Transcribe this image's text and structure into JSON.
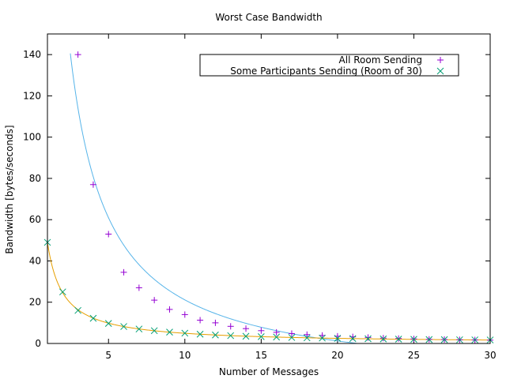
{
  "chart_data": {
    "type": "scatter",
    "title": "Worst Case Bandwidth",
    "xlabel": "Number of Messages",
    "ylabel": "Bandwidth [bytes/seconds]",
    "xlim": [
      1,
      30
    ],
    "ylim": [
      0,
      150
    ],
    "x_ticks": [
      5,
      10,
      15,
      20,
      25,
      30
    ],
    "y_ticks": [
      0,
      20,
      40,
      60,
      80,
      100,
      120,
      140
    ],
    "grid": false,
    "legend_position": "top-right",
    "series": [
      {
        "name": "All Room Sending",
        "marker": "plus",
        "color": "#9400d3",
        "fit_color": "#56b4e9",
        "x": [
          3,
          4,
          5,
          6,
          7,
          8,
          9,
          10,
          11,
          12,
          13,
          14,
          15,
          16,
          17,
          18,
          19,
          20,
          21,
          22,
          23,
          24,
          25,
          26,
          27,
          28,
          29,
          30
        ],
        "y": [
          140,
          77,
          53,
          34.5,
          27,
          21,
          16.5,
          14,
          11.3,
          10,
          8.3,
          7.2,
          6.2,
          5.4,
          4.8,
          4.3,
          3.9,
          3.5,
          3.2,
          2.9,
          2.6,
          2.4,
          2.2,
          2.0,
          1.9,
          1.8,
          1.7,
          1.6
        ]
      },
      {
        "name": "Some Participants Sending (Room of 30)",
        "marker": "cross",
        "color": "#009e73",
        "fit_color": "#e69f00",
        "x": [
          1,
          2,
          3,
          4,
          5,
          6,
          7,
          8,
          9,
          10,
          11,
          12,
          13,
          14,
          15,
          16,
          17,
          18,
          19,
          20,
          21,
          22,
          23,
          24,
          25,
          26,
          27,
          28,
          29,
          30
        ],
        "y": [
          49,
          25,
          16,
          12.2,
          9.7,
          8.2,
          7,
          6.2,
          5.5,
          5,
          4.5,
          4.1,
          3.8,
          3.5,
          3.3,
          3.1,
          2.9,
          2.7,
          2.6,
          2.5,
          2.4,
          2.3,
          2.2,
          2.1,
          2.0,
          1.9,
          1.85,
          1.8,
          1.75,
          1.7
        ]
      }
    ]
  }
}
